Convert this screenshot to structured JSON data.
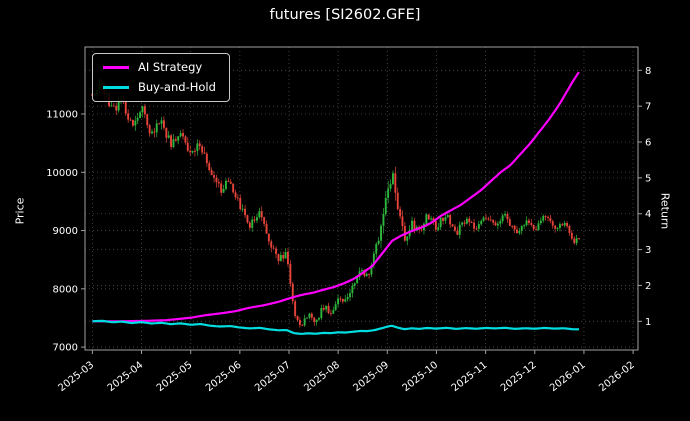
{
  "chart_data": {
    "type": "candlestick",
    "title": "futures [SI2602.GFE]",
    "background": "#000000",
    "grid": {
      "on": true,
      "style": "dotted",
      "color": "#4c4c4c"
    },
    "legend_position": "upper-left",
    "x_axis": {
      "tick_labels": [
        "2025-03",
        "2025-04",
        "2025-05",
        "2025-06",
        "2025-07",
        "2025-08",
        "2025-09",
        "2025-10",
        "2025-11",
        "2025-12",
        "2026-01",
        "2026-02"
      ],
      "range_months": [
        -0.15,
        11.1
      ],
      "label_rotation_deg": -38
    },
    "left_axis": {
      "label": "Price",
      "ticks": [
        7000,
        8000,
        9000,
        10000,
        11000
      ],
      "range": [
        6950,
        12150
      ]
    },
    "right_axis": {
      "label": "Return",
      "ticks": [
        1,
        2,
        3,
        4,
        5,
        6,
        7,
        8
      ],
      "range": [
        0.2,
        8.65
      ]
    },
    "candles": {
      "up_color": "#2db83d",
      "down_color": "#e8443a",
      "count": 205,
      "t_end": 9.9,
      "seed": 42,
      "close_anchors": {
        "t": [
          0,
          0.2,
          0.4,
          0.6,
          0.8,
          1.0,
          1.2,
          1.4,
          1.6,
          1.8,
          2.0,
          2.2,
          2.4,
          2.6,
          2.8,
          3.0,
          3.2,
          3.4,
          3.6,
          3.8,
          3.95,
          4.1,
          4.25,
          4.4,
          4.55,
          4.7,
          4.85,
          5.0,
          5.15,
          5.3,
          5.45,
          5.6,
          5.75,
          5.9,
          6.0,
          6.1,
          6.2,
          6.35,
          6.5,
          6.65,
          6.8,
          7.0,
          7.2,
          7.4,
          7.6,
          7.8,
          8.0,
          8.2,
          8.4,
          8.6,
          8.8,
          9.0,
          9.2,
          9.4,
          9.6,
          9.8,
          9.9
        ],
        "close": [
          11350,
          11500,
          11050,
          11250,
          10800,
          11100,
          10650,
          10900,
          10450,
          10700,
          10250,
          10500,
          9950,
          9700,
          9850,
          9400,
          9100,
          9300,
          8800,
          8500,
          8600,
          7600,
          7380,
          7550,
          7420,
          7700,
          7600,
          7850,
          7800,
          8050,
          8300,
          8250,
          8600,
          9200,
          9700,
          9950,
          9400,
          8850,
          9150,
          8950,
          9250,
          9050,
          9300,
          8950,
          9200,
          9000,
          9250,
          9100,
          9300,
          8950,
          9150,
          9000,
          9250,
          9050,
          9150,
          8800,
          8850
        ]
      },
      "range_anchors": {
        "t": [
          0,
          2,
          3.5,
          4.3,
          5.5,
          6.05,
          6.6,
          8,
          9.9
        ],
        "amp": [
          170,
          180,
          150,
          120,
          140,
          280,
          150,
          130,
          120
        ]
      }
    },
    "series": [
      {
        "name": "AI Strategy",
        "color": "#ff00ff",
        "axis": "right",
        "t": [
          0,
          0.5,
          1.0,
          1.5,
          2.0,
          2.3,
          2.6,
          2.9,
          3.2,
          3.5,
          3.8,
          4.1,
          4.3,
          4.5,
          4.7,
          4.9,
          5.1,
          5.3,
          5.5,
          5.7,
          5.9,
          6.1,
          6.3,
          6.5,
          6.7,
          6.9,
          7.1,
          7.3,
          7.5,
          7.7,
          7.9,
          8.1,
          8.3,
          8.5,
          8.7,
          8.9,
          9.1,
          9.3,
          9.5,
          9.65,
          9.8,
          9.9
        ],
        "values": [
          1.0,
          1.0,
          1.01,
          1.03,
          1.1,
          1.17,
          1.22,
          1.28,
          1.38,
          1.45,
          1.55,
          1.68,
          1.75,
          1.8,
          1.88,
          1.95,
          2.05,
          2.17,
          2.35,
          2.55,
          2.9,
          3.25,
          3.4,
          3.52,
          3.62,
          3.75,
          3.95,
          4.1,
          4.25,
          4.45,
          4.65,
          4.9,
          5.15,
          5.35,
          5.65,
          5.95,
          6.3,
          6.65,
          7.05,
          7.4,
          7.75,
          7.95
        ]
      },
      {
        "name": "Buy-and-Hold",
        "color": "#00dde0",
        "axis": "right",
        "t": [
          0,
          0.2,
          0.4,
          0.6,
          0.8,
          1.0,
          1.2,
          1.4,
          1.6,
          1.8,
          2.0,
          2.2,
          2.4,
          2.6,
          2.8,
          3.0,
          3.2,
          3.4,
          3.6,
          3.8,
          3.95,
          4.1,
          4.25,
          4.4,
          4.55,
          4.7,
          4.85,
          5.0,
          5.15,
          5.3,
          5.45,
          5.6,
          5.75,
          5.9,
          6.0,
          6.1,
          6.2,
          6.35,
          6.5,
          6.65,
          6.8,
          7.0,
          7.2,
          7.4,
          7.6,
          7.8,
          8.0,
          8.2,
          8.4,
          8.6,
          8.8,
          9.0,
          9.2,
          9.4,
          9.6,
          9.8,
          9.9
        ],
        "values": [
          1.0,
          1.013,
          0.974,
          0.991,
          0.952,
          0.978,
          0.938,
          0.96,
          0.921,
          0.943,
          0.903,
          0.925,
          0.877,
          0.855,
          0.868,
          0.828,
          0.802,
          0.819,
          0.775,
          0.749,
          0.758,
          0.67,
          0.65,
          0.665,
          0.654,
          0.678,
          0.67,
          0.692,
          0.687,
          0.709,
          0.731,
          0.727,
          0.758,
          0.811,
          0.855,
          0.877,
          0.828,
          0.78,
          0.806,
          0.789,
          0.815,
          0.797,
          0.819,
          0.789,
          0.811,
          0.793,
          0.815,
          0.802,
          0.819,
          0.789,
          0.806,
          0.793,
          0.815,
          0.797,
          0.806,
          0.775,
          0.78
        ]
      }
    ]
  }
}
